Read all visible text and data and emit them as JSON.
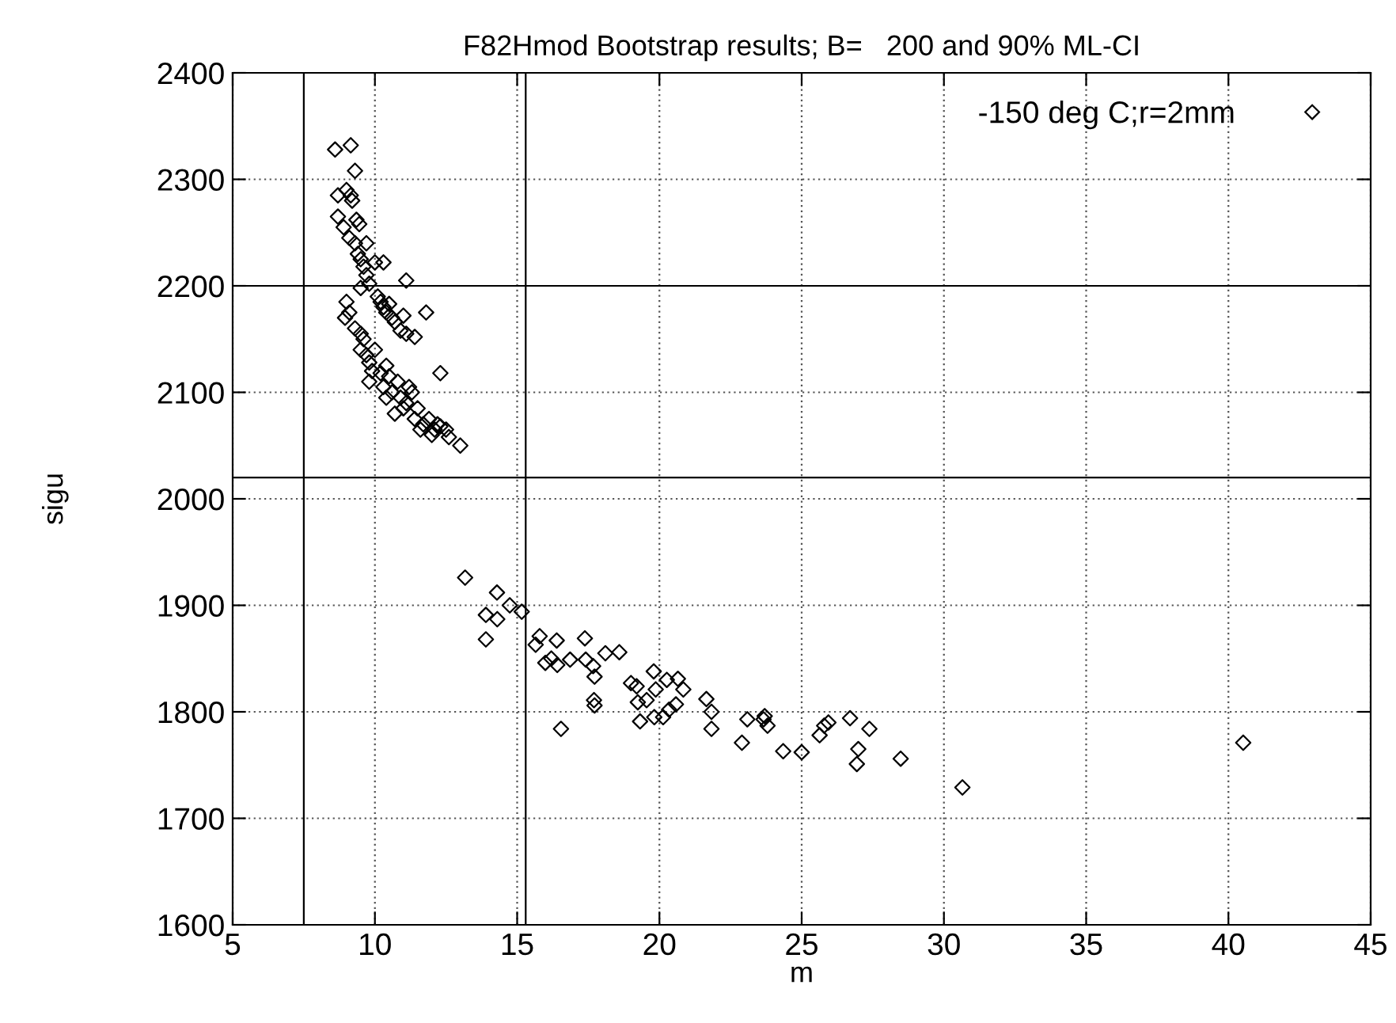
{
  "chart_data": {
    "type": "scatter",
    "title": "F82Hmod Bootstrap results; B=   200 and 90% ML-CI",
    "xlabel": "m",
    "ylabel": "sigu",
    "xlim": [
      5,
      45
    ],
    "xticks": [
      5,
      10,
      15,
      20,
      25,
      30,
      35,
      40,
      45
    ],
    "ylim": [
      1600,
      2400
    ],
    "yticks": [
      1600,
      1700,
      1800,
      1900,
      2000,
      2100,
      2200,
      2300,
      2400
    ],
    "grid": true,
    "legend": "top right",
    "marker": "diamond",
    "ref_lines": [
      {
        "axis": "x",
        "value": 7.5,
        "color": "#000000"
      },
      {
        "axis": "x",
        "value": 15.3,
        "color": "#000000"
      },
      {
        "axis": "y",
        "value": 2200,
        "color": "#000000"
      },
      {
        "axis": "y",
        "value": 2020,
        "color": "#000000"
      }
    ],
    "series": [
      {
        "name": "-150 deg C;r=2mm",
        "color": "#000000",
        "x": [
          8.6,
          9.15,
          9.3,
          8.7,
          9.0,
          9.15,
          9.2,
          8.7,
          8.9,
          9.1,
          9.3,
          9.4,
          9.5,
          9.35,
          9.45,
          9.7,
          10.0,
          9.6,
          9.7,
          9.8,
          9.5,
          10.3,
          11.1,
          10.1,
          10.2,
          10.3,
          10.4,
          10.6,
          10.7,
          10.5,
          11.0,
          10.9,
          11.1,
          11.4,
          11.8,
          12.3,
          9.0,
          9.1,
          8.95,
          9.3,
          9.5,
          9.6,
          9.5,
          9.7,
          9.8,
          10.0,
          9.9,
          10.2,
          10.4,
          10.5,
          10.3,
          10.6,
          10.8,
          10.9,
          11.0,
          11.2,
          11.3,
          11.1,
          11.4,
          11.5,
          11.7,
          11.9,
          12.1,
          12.3,
          12.5,
          12.6,
          13.0,
          10.7,
          10.4,
          9.8,
          11.6,
          12.0,
          12.2,
          13.17,
          14.29,
          13.9,
          14.3,
          14.74,
          15.16,
          13.9,
          15.79,
          15.65,
          16.39,
          15.99,
          16.41,
          16.86,
          16.2,
          17.38,
          17.41,
          17.67,
          17.72,
          17.7,
          17.72,
          16.54,
          18.1,
          18.59,
          19.0,
          19.2,
          19.8,
          19.87,
          20.26,
          20.65,
          20.84,
          19.24,
          19.55,
          19.32,
          19.82,
          20.34,
          20.58,
          20.13,
          21.65,
          21.83,
          21.83,
          22.9,
          23.09,
          23.66,
          23.8,
          23.7,
          24.35,
          25.0,
          25.63,
          25.79,
          25.94,
          26.7,
          27.38,
          26.99,
          26.94,
          28.48,
          30.65,
          40.52
        ],
        "values": [
          2328,
          2332,
          2308,
          2285,
          2290,
          2285,
          2280,
          2265,
          2255,
          2245,
          2240,
          2230,
          2225,
          2262,
          2258,
          2240,
          2222,
          2218,
          2210,
          2202,
          2198,
          2222,
          2205,
          2190,
          2185,
          2180,
          2175,
          2170,
          2166,
          2183,
          2172,
          2158,
          2155,
          2152,
          2175,
          2118,
          2185,
          2175,
          2170,
          2160,
          2155,
          2150,
          2140,
          2135,
          2128,
          2140,
          2120,
          2118,
          2125,
          2115,
          2105,
          2100,
          2110,
          2095,
          2085,
          2105,
          2100,
          2090,
          2075,
          2085,
          2070,
          2075,
          2065,
          2068,
          2065,
          2058,
          2050,
          2080,
          2095,
          2110,
          2065,
          2060,
          2070,
          1926,
          1912,
          1891,
          1887,
          1900,
          1894,
          1868,
          1871,
          1863,
          1867,
          1846,
          1844,
          1849,
          1850,
          1869,
          1849,
          1843,
          1833,
          1811,
          1806,
          1784,
          1855,
          1856,
          1827,
          1824,
          1838,
          1821,
          1830,
          1831,
          1821,
          1809,
          1811,
          1791,
          1795,
          1802,
          1807,
          1795,
          1812,
          1800,
          1784,
          1771,
          1793,
          1793,
          1787,
          1796,
          1763,
          1762,
          1778,
          1787,
          1790,
          1794,
          1784,
          1765,
          1751,
          1756,
          1729,
          1771
        ]
      }
    ]
  }
}
